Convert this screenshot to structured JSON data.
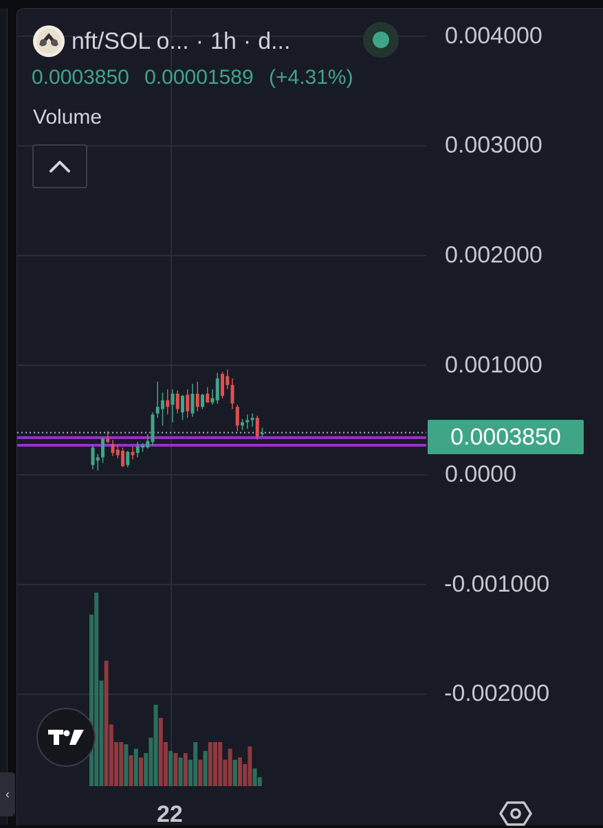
{
  "header": {
    "symbol": "nft/SOL o...",
    "interval": "1h",
    "source": "d...",
    "separator": "·"
  },
  "quote": {
    "last": "0.0003850",
    "change": "0.00001589",
    "change_pct": "(+4.31%)"
  },
  "indicator_label": "Volume",
  "colors": {
    "up": "#3fa586",
    "down": "#e0504f",
    "level_line": "#9b30c8",
    "background": "#181a25"
  },
  "icons": {
    "logo": "token-logo-icon",
    "collapse": "chevron-up-icon",
    "tradingview": "tradingview-logo-icon",
    "settings": "settings-icon",
    "expand": "chevron-left-icon"
  },
  "chart_data": {
    "type": "candlestick",
    "y_axis": {
      "ticks": [
        "0.004000",
        "0.003000",
        "0.002000",
        "0.001000",
        "0.0000",
        "-0.001000",
        "-0.002000"
      ],
      "tick_values": [
        0.004,
        0.003,
        0.002,
        0.001,
        0.0,
        -0.001,
        -0.002
      ],
      "ylim": [
        -0.00285,
        0.00433
      ]
    },
    "x_axis": {
      "ticks": [
        "22"
      ]
    },
    "last_price_label": "0.0003850",
    "last_price": 0.000385,
    "level_lines": [
      0.00034,
      0.00027
    ],
    "grid": true,
    "candles": [
      {
        "o": 9e-05,
        "h": 0.00027,
        "l": 5e-05,
        "c": 0.00025
      },
      {
        "o": 0.00013,
        "h": 0.00019,
        "l": 4e-05,
        "c": 0.00016
      },
      {
        "o": 0.00016,
        "h": 0.00034,
        "l": 0.00011,
        "c": 0.00033
      },
      {
        "o": 0.00033,
        "h": 0.0004,
        "l": 0.00029,
        "c": 0.0003
      },
      {
        "o": 0.00028,
        "h": 0.00032,
        "l": 0.00017,
        "c": 0.0002
      },
      {
        "o": 0.00023,
        "h": 0.00028,
        "l": 0.00015,
        "c": 0.00018
      },
      {
        "o": 0.00022,
        "h": 0.00025,
        "l": 7e-05,
        "c": 8e-05
      },
      {
        "o": 9e-05,
        "h": 0.00022,
        "l": 7e-05,
        "c": 0.00021
      },
      {
        "o": 0.00021,
        "h": 0.00026,
        "l": 0.00014,
        "c": 0.00018
      },
      {
        "o": 0.0002,
        "h": 0.0003,
        "l": 0.00016,
        "c": 0.00026
      },
      {
        "o": 0.00025,
        "h": 0.00029,
        "l": 0.00021,
        "c": 0.00027
      },
      {
        "o": 0.00025,
        "h": 0.00037,
        "l": 0.00024,
        "c": 0.00031
      },
      {
        "o": 0.0003,
        "h": 0.00057,
        "l": 0.00027,
        "c": 0.00055
      },
      {
        "o": 0.00056,
        "h": 0.00085,
        "l": 0.00052,
        "c": 0.00062
      },
      {
        "o": 0.0006,
        "h": 0.00075,
        "l": 0.00045,
        "c": 0.00068
      },
      {
        "o": 0.00068,
        "h": 0.00078,
        "l": 0.00055,
        "c": 0.00062
      },
      {
        "o": 0.00064,
        "h": 0.00078,
        "l": 0.00048,
        "c": 0.00074
      },
      {
        "o": 0.00074,
        "h": 0.00077,
        "l": 0.00056,
        "c": 0.0006
      },
      {
        "o": 0.00057,
        "h": 0.00073,
        "l": 0.0005,
        "c": 0.00072
      },
      {
        "o": 0.00073,
        "h": 0.00078,
        "l": 0.00052,
        "c": 0.00058
      },
      {
        "o": 0.00056,
        "h": 0.00083,
        "l": 0.00053,
        "c": 0.00074
      },
      {
        "o": 0.00074,
        "h": 0.00085,
        "l": 0.00058,
        "c": 0.00062
      },
      {
        "o": 0.00062,
        "h": 0.00074,
        "l": 0.0006,
        "c": 0.00073
      },
      {
        "o": 0.00074,
        "h": 0.0008,
        "l": 0.00066,
        "c": 0.00066
      },
      {
        "o": 0.00066,
        "h": 0.00078,
        "l": 0.00064,
        "c": 0.0007
      },
      {
        "o": 0.00068,
        "h": 0.00093,
        "l": 0.00065,
        "c": 0.00088
      },
      {
        "o": 0.00092,
        "h": 0.00094,
        "l": 0.0007,
        "c": 0.00072
      },
      {
        "o": 0.0009,
        "h": 0.00096,
        "l": 0.00078,
        "c": 0.00082
      },
      {
        "o": 0.00082,
        "h": 0.00088,
        "l": 0.0006,
        "c": 0.00065
      },
      {
        "o": 0.00062,
        "h": 0.00064,
        "l": 0.0004,
        "c": 0.00045
      },
      {
        "o": 0.00045,
        "h": 0.00051,
        "l": 0.00041,
        "c": 0.00048
      },
      {
        "o": 0.00048,
        "h": 0.00055,
        "l": 0.00042,
        "c": 0.0005
      },
      {
        "o": 0.0005,
        "h": 0.00056,
        "l": 0.00044,
        "c": 0.00052
      },
      {
        "o": 0.00052,
        "h": 0.00054,
        "l": 0.00032,
        "c": 0.00035
      },
      {
        "o": 0.00037,
        "h": 0.00043,
        "l": 0.00035,
        "c": 0.00038
      }
    ],
    "volume": [
      {
        "v": 0.78,
        "up": true
      },
      {
        "v": 0.88,
        "up": true
      },
      {
        "v": 0.48,
        "up": true
      },
      {
        "v": 0.57,
        "up": false
      },
      {
        "v": 0.28,
        "up": false
      },
      {
        "v": 0.2,
        "up": false
      },
      {
        "v": 0.2,
        "up": false
      },
      {
        "v": 0.19,
        "up": true
      },
      {
        "v": 0.14,
        "up": false
      },
      {
        "v": 0.17,
        "up": true
      },
      {
        "v": 0.13,
        "up": false
      },
      {
        "v": 0.15,
        "up": true
      },
      {
        "v": 0.22,
        "up": true
      },
      {
        "v": 0.37,
        "up": true
      },
      {
        "v": 0.31,
        "up": false
      },
      {
        "v": 0.2,
        "up": false
      },
      {
        "v": 0.16,
        "up": true
      },
      {
        "v": 0.15,
        "up": false
      },
      {
        "v": 0.13,
        "up": true
      },
      {
        "v": 0.15,
        "up": false
      },
      {
        "v": 0.12,
        "up": true
      },
      {
        "v": 0.2,
        "up": true
      },
      {
        "v": 0.12,
        "up": false
      },
      {
        "v": 0.16,
        "up": true
      },
      {
        "v": 0.2,
        "up": false
      },
      {
        "v": 0.2,
        "up": false
      },
      {
        "v": 0.2,
        "up": false
      },
      {
        "v": 0.12,
        "up": false
      },
      {
        "v": 0.17,
        "up": false
      },
      {
        "v": 0.12,
        "up": true
      },
      {
        "v": 0.13,
        "up": false
      },
      {
        "v": 0.1,
        "up": false
      },
      {
        "v": 0.18,
        "up": false
      },
      {
        "v": 0.08,
        "up": true
      },
      {
        "v": 0.04,
        "up": true
      }
    ]
  }
}
